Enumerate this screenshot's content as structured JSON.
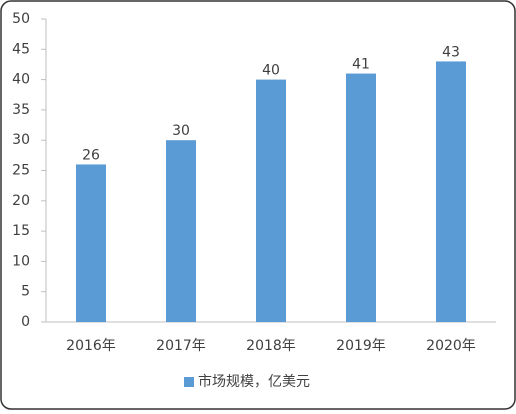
{
  "chart_data": {
    "type": "bar",
    "categories": [
      "2016年",
      "2017年",
      "2018年",
      "2019年",
      "2020年"
    ],
    "series": [
      {
        "name": "市场规模，亿美元",
        "color": "#5b9bd5",
        "values": [
          26,
          30,
          40,
          41,
          43
        ]
      }
    ],
    "ylim": [
      0,
      50
    ],
    "yticks": [
      0,
      5,
      10,
      15,
      20,
      25,
      30,
      35,
      40,
      45,
      50
    ],
    "grid": false,
    "legend": "bottom"
  }
}
